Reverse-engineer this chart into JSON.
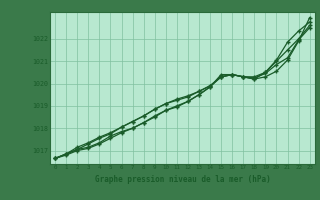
{
  "xlabel": "Graphe pression niveau de la mer (hPa)",
  "fig_bg_color": "#3a7a4a",
  "plot_bg_color": "#b8e8d0",
  "grid_color": "#80c0a0",
  "line_color": "#1a5c2a",
  "spine_color": "#2a6a3a",
  "x_ticks": [
    0,
    1,
    2,
    3,
    4,
    5,
    6,
    7,
    8,
    9,
    10,
    11,
    12,
    13,
    14,
    15,
    16,
    17,
    18,
    19,
    20,
    21,
    22,
    23
  ],
  "ylim": [
    1016.4,
    1023.2
  ],
  "yticks": [
    1017,
    1018,
    1019,
    1020,
    1021,
    1022
  ],
  "series": [
    [
      1016.65,
      1016.85,
      1017.05,
      1017.15,
      1017.35,
      1017.65,
      1017.85,
      1018.0,
      1018.25,
      1018.55,
      1018.8,
      1018.95,
      1019.2,
      1019.5,
      1019.85,
      1020.4,
      1020.4,
      1020.3,
      1020.2,
      1020.5,
      1021.05,
      1021.85,
      1022.35,
      1022.75
    ],
    [
      1016.65,
      1016.85,
      1017.05,
      1017.3,
      1017.55,
      1017.75,
      1018.05,
      1018.3,
      1018.55,
      1018.85,
      1019.1,
      1019.25,
      1019.4,
      1019.65,
      1019.9,
      1020.3,
      1020.4,
      1020.3,
      1020.3,
      1020.5,
      1021.0,
      1021.5,
      1022.0,
      1022.6
    ],
    [
      1016.65,
      1016.85,
      1017.15,
      1017.35,
      1017.6,
      1017.8,
      1018.05,
      1018.3,
      1018.55,
      1018.85,
      1019.1,
      1019.3,
      1019.45,
      1019.65,
      1019.9,
      1020.3,
      1020.4,
      1020.3,
      1020.25,
      1020.45,
      1020.85,
      1021.15,
      1021.95,
      1022.5
    ],
    [
      1016.65,
      1016.8,
      1017.0,
      1017.1,
      1017.3,
      1017.55,
      1017.8,
      1018.0,
      1018.25,
      1018.5,
      1018.8,
      1019.0,
      1019.2,
      1019.5,
      1019.85,
      1020.3,
      1020.4,
      1020.3,
      1020.2,
      1020.3,
      1020.55,
      1021.05,
      1021.9,
      1022.95
    ]
  ]
}
